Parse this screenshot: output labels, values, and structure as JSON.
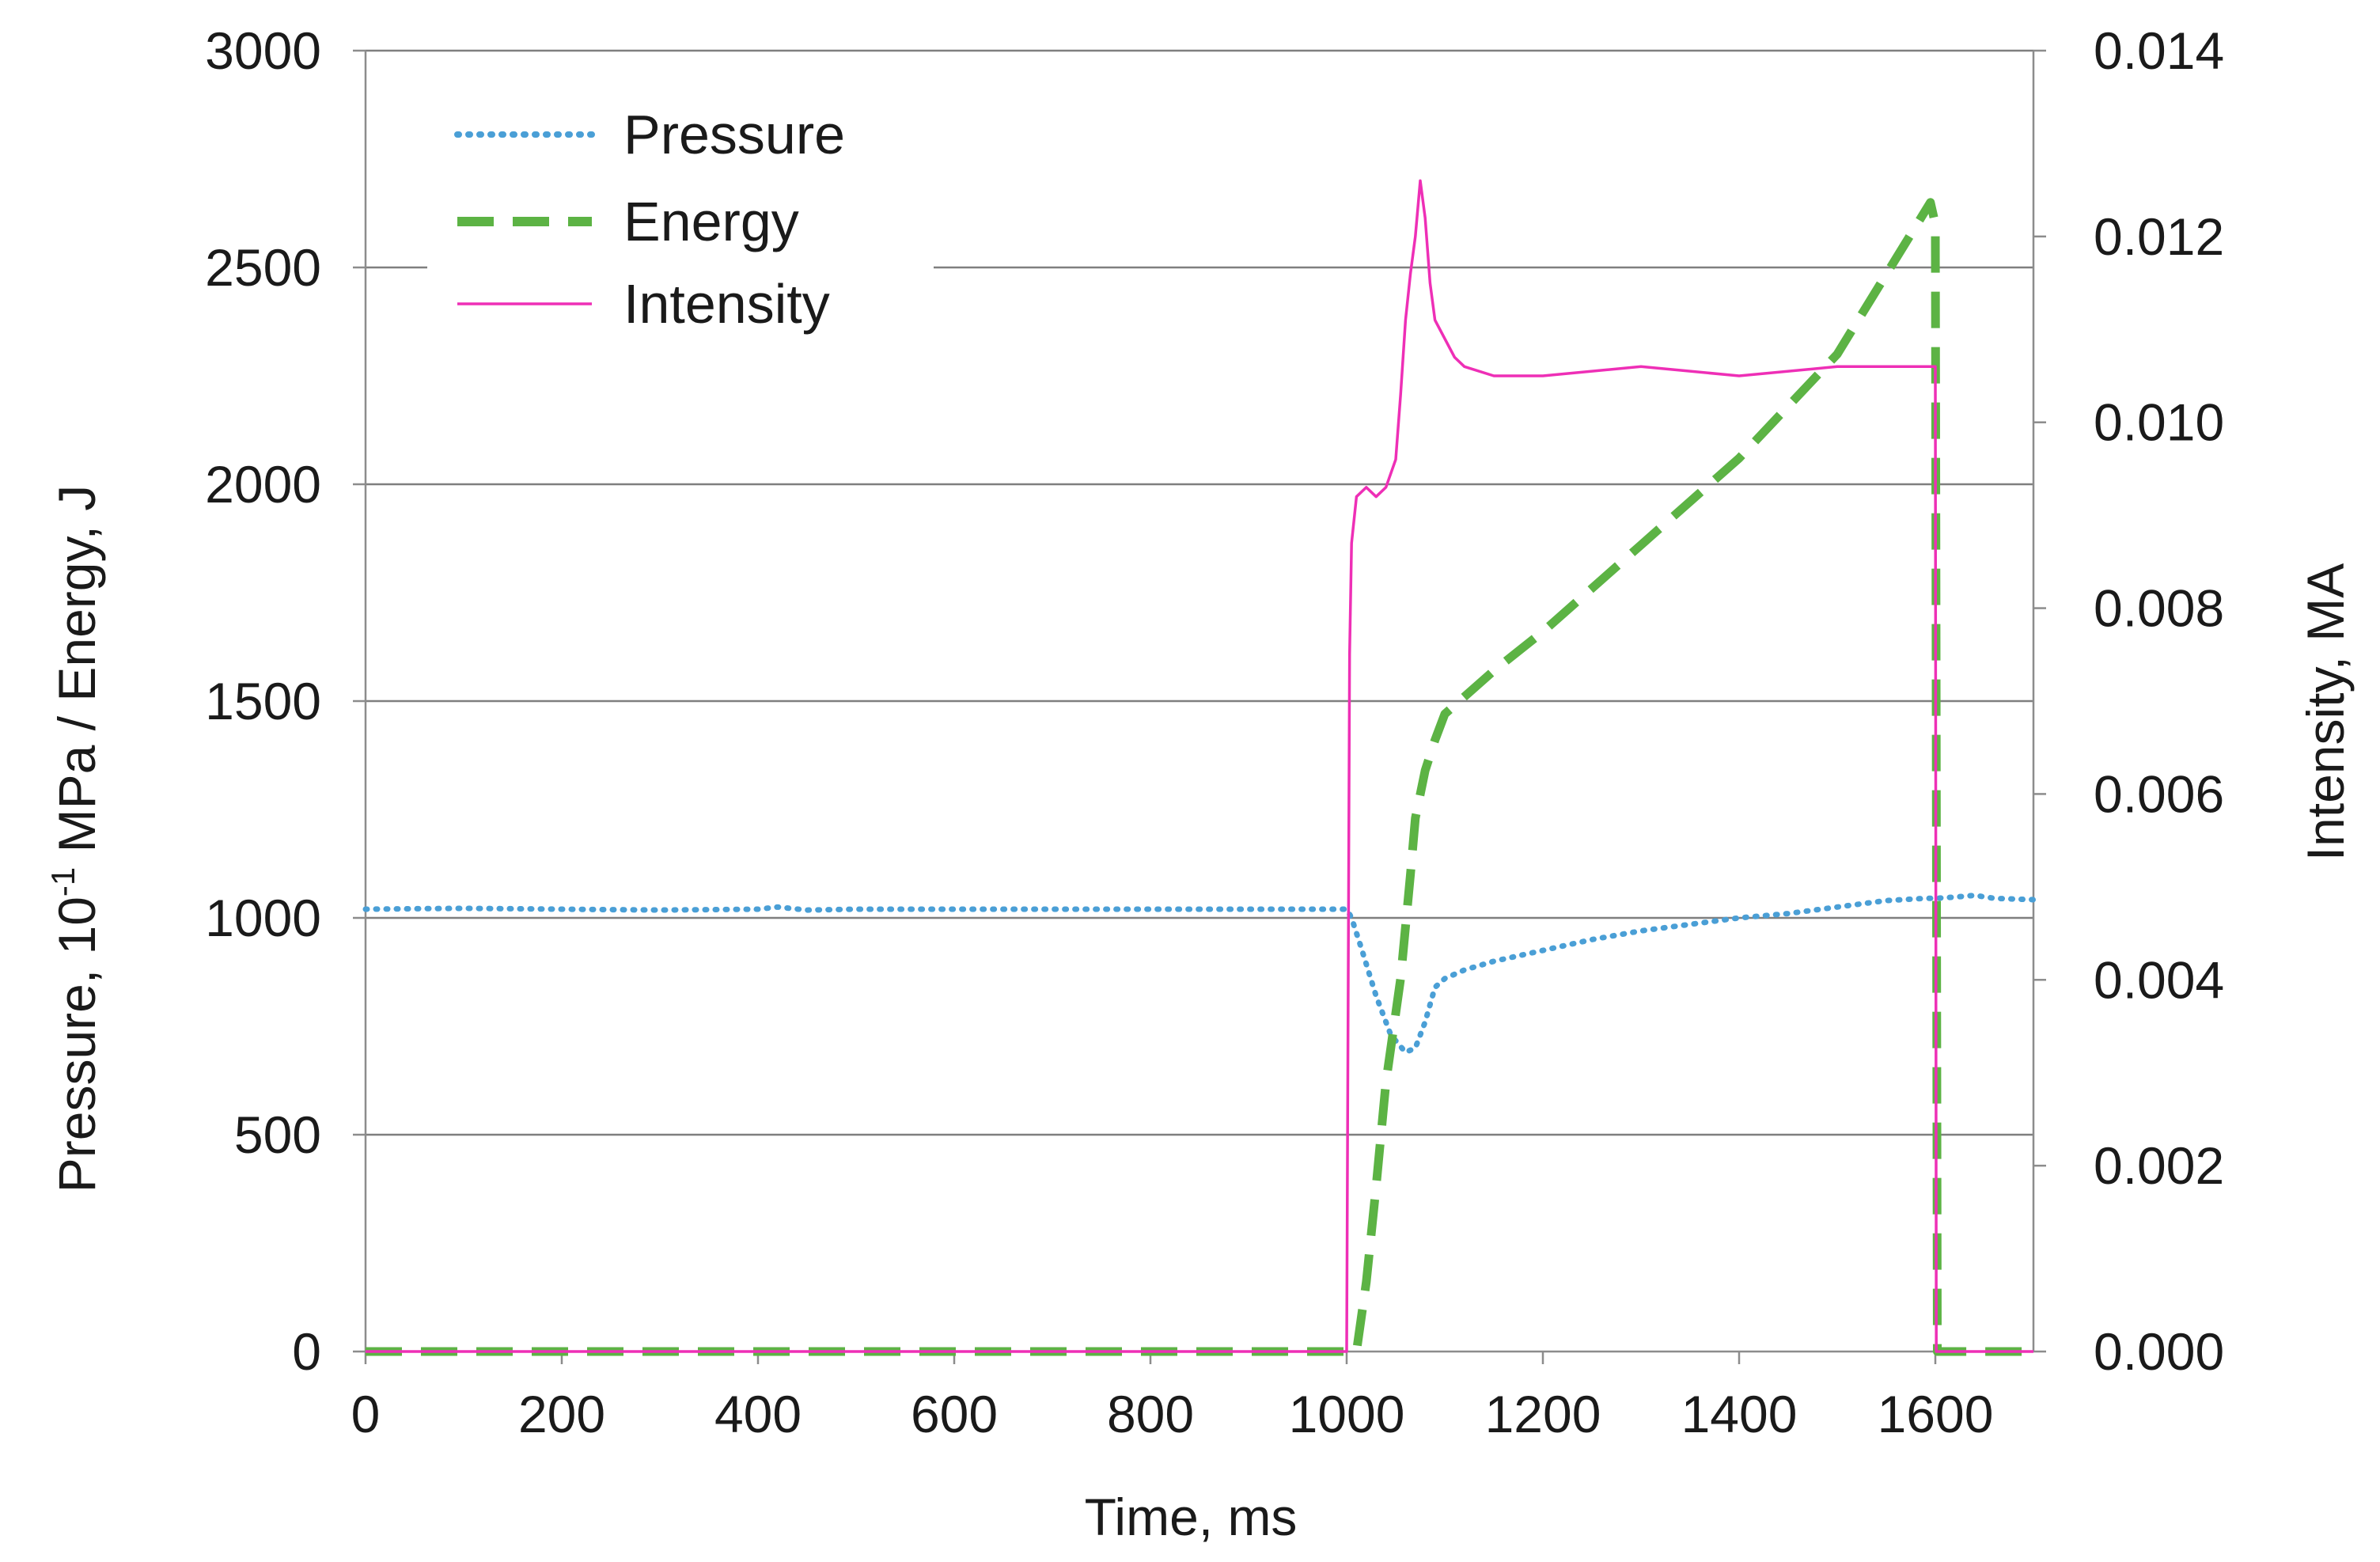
{
  "chart_data": {
    "type": "line",
    "title": "",
    "xlabel": "Time, ms",
    "ylabel": "Pressure, 10",
    "ylabel_superscript": "-1",
    "ylabel_suffix": " MPa / Energy, J",
    "y2label": "Intensity, MA",
    "xlim": [
      0,
      1700
    ],
    "ylim": [
      0,
      3000
    ],
    "y2lim": [
      0,
      0.014
    ],
    "grid": true,
    "legend_position": "top-left",
    "x_ticks": [
      "0",
      "200",
      "400",
      "600",
      "800",
      "1000",
      "1200",
      "1400",
      "1600"
    ],
    "y_ticks": [
      "0",
      "500",
      "1000",
      "1500",
      "2000",
      "2500",
      "3000"
    ],
    "y2_ticks": [
      "0.000",
      "0.002",
      "0.004",
      "0.006",
      "0.008",
      "0.010",
      "0.012",
      "0.014"
    ],
    "series": [
      {
        "name": "Pressure",
        "axis": "left",
        "style": "dotted",
        "color": "#4a9fd6",
        "x": [
          0,
          100,
          200,
          300,
          400,
          420,
          450,
          500,
          600,
          700,
          800,
          900,
          1000,
          1005,
          1015,
          1030,
          1045,
          1060,
          1070,
          1080,
          1090,
          1100,
          1110,
          1120,
          1150,
          1200,
          1250,
          1300,
          1350,
          1400,
          1450,
          1500,
          1550,
          1590,
          1600,
          1620,
          1640,
          1660,
          1700
        ],
        "values": [
          1020,
          1022,
          1020,
          1018,
          1020,
          1025,
          1018,
          1020,
          1020,
          1020,
          1020,
          1020,
          1020,
          1000,
          930,
          820,
          730,
          690,
          700,
          760,
          840,
          860,
          870,
          880,
          900,
          925,
          950,
          970,
          985,
          1000,
          1010,
          1025,
          1040,
          1045,
          1045,
          1048,
          1052,
          1045,
          1042
        ]
      },
      {
        "name": "Energy",
        "axis": "left",
        "style": "dashed",
        "color": "#5cb344",
        "x": [
          0,
          1000,
          1010,
          1020,
          1030,
          1040,
          1050,
          1055,
          1060,
          1065,
          1070,
          1080,
          1090,
          1100,
          1150,
          1200,
          1300,
          1400,
          1500,
          1595,
          1600,
          1602,
          1700
        ],
        "values": [
          0,
          0,
          0,
          160,
          380,
          620,
          780,
          860,
          980,
          1100,
          1230,
          1340,
          1410,
          1470,
          1570,
          1660,
          1860,
          2060,
          2300,
          2650,
          2600,
          0,
          0
        ]
      },
      {
        "name": "Intensity",
        "axis": "right",
        "style": "solid",
        "color": "#ee2fb6",
        "x": [
          0,
          1000,
          1003,
          1005,
          1010,
          1020,
          1030,
          1040,
          1050,
          1055,
          1060,
          1065,
          1070,
          1075,
          1080,
          1085,
          1090,
          1100,
          1110,
          1120,
          1150,
          1200,
          1300,
          1400,
          1500,
          1550,
          1600,
          1601,
          1700
        ],
        "values": [
          0.0,
          0.0,
          0.0075,
          0.0087,
          0.0092,
          0.0093,
          0.0092,
          0.0093,
          0.0096,
          0.0103,
          0.0111,
          0.0116,
          0.012,
          0.0126,
          0.0122,
          0.0115,
          0.0111,
          0.0109,
          0.0107,
          0.0106,
          0.0105,
          0.0105,
          0.0106,
          0.0105,
          0.0106,
          0.0106,
          0.0106,
          0.0,
          0.0
        ]
      }
    ]
  }
}
